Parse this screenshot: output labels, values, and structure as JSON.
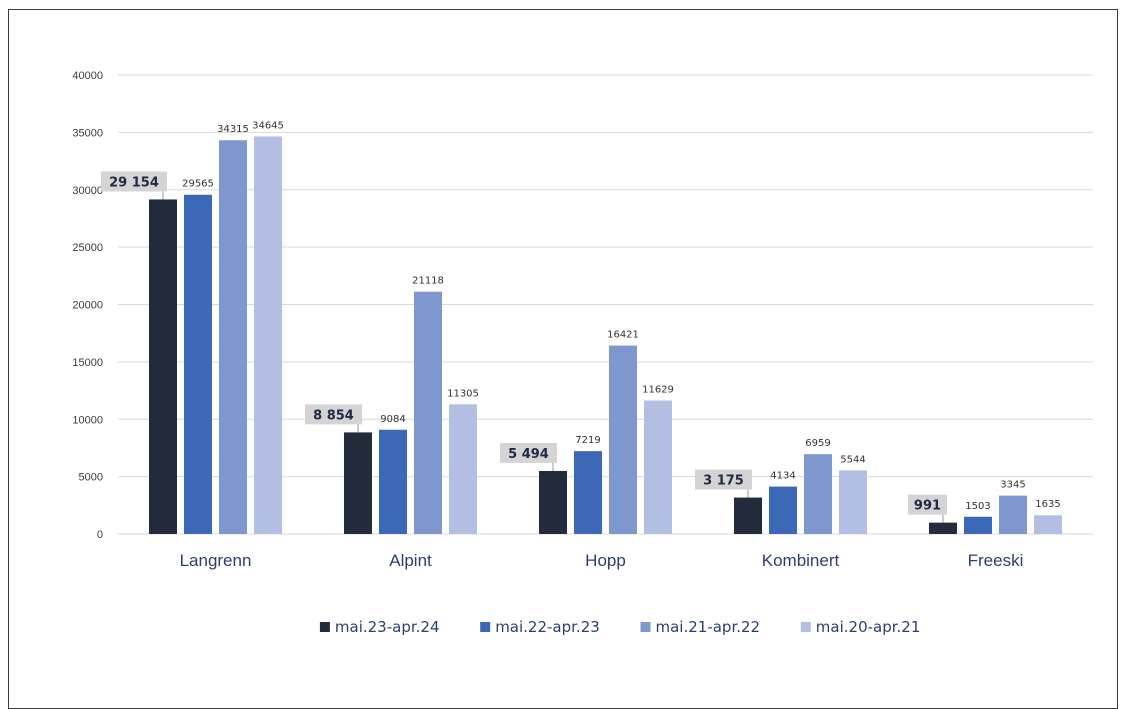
{
  "chart_data": {
    "type": "bar",
    "categories": [
      "Langrenn",
      "Alpint",
      "Hopp",
      "Kombinert",
      "Freeski"
    ],
    "series": [
      {
        "name": "mai.23-apr.24",
        "values": [
          29154,
          8854,
          5494,
          3175,
          991
        ],
        "color": "#232c3d"
      },
      {
        "name": "mai.22-apr.23",
        "values": [
          29565,
          9084,
          7219,
          4134,
          1503
        ],
        "color": "#3c68b8"
      },
      {
        "name": "mai.21-apr.22",
        "values": [
          34315,
          21118,
          16421,
          6959,
          3345
        ],
        "color": "#7f97cf"
      },
      {
        "name": "mai.20-apr.21",
        "values": [
          34645,
          11305,
          11629,
          5544,
          1635
        ],
        "color": "#b2bfe3"
      }
    ],
    "highlight_labels": [
      "29 154",
      "8 854",
      "5 494",
      "3 175",
      "991"
    ],
    "yticks": [
      0,
      5000,
      10000,
      15000,
      20000,
      25000,
      30000,
      35000,
      40000
    ],
    "ylim": [
      0,
      40000
    ],
    "grid": true,
    "legend": "bottom"
  }
}
